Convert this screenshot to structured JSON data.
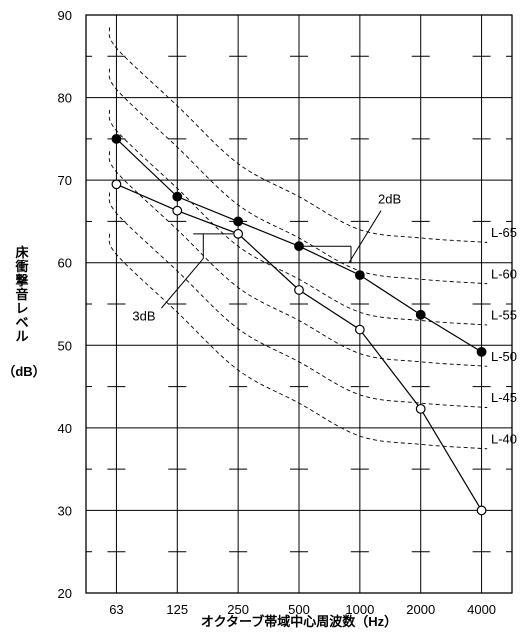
{
  "chart_data": {
    "type": "line",
    "xlabel": "オクターブ帯域中心周波数（Hz）",
    "ylabel_lines": [
      "床",
      "衝",
      "撃",
      "音",
      "レ",
      "ベ",
      "ル"
    ],
    "ylabel_unit": "（dB）",
    "categories": [
      "63",
      "125",
      "250",
      "500",
      "1000",
      "2000",
      "4000"
    ],
    "ylim": [
      20,
      90
    ],
    "yticks": [
      20,
      30,
      40,
      50,
      60,
      70,
      80,
      90
    ],
    "grid": true,
    "series": [
      {
        "marker": "filled",
        "values": [
          75,
          68,
          65,
          62,
          58.5,
          53.7,
          49.2
        ]
      },
      {
        "marker": "open",
        "values": [
          69.5,
          66.3,
          63.5,
          56.7,
          51.9,
          42.3,
          30
        ]
      }
    ],
    "reference_curves": [
      {
        "name": "L-65",
        "values": [
          86,
          79,
          72,
          68,
          64,
          63,
          62.5
        ]
      },
      {
        "name": "L-60",
        "values": [
          81,
          74,
          67,
          63,
          59,
          58,
          57.5
        ]
      },
      {
        "name": "L-55",
        "values": [
          76,
          69,
          62,
          58,
          54,
          53,
          52.5
        ]
      },
      {
        "name": "L-50",
        "values": [
          71,
          64,
          57,
          53,
          49,
          48,
          47.5
        ]
      },
      {
        "name": "L-45",
        "values": [
          66,
          59,
          52,
          48,
          44,
          43,
          42.5
        ]
      },
      {
        "name": "L-40",
        "values": [
          61,
          54,
          47,
          43,
          39,
          38,
          37.5
        ]
      }
    ],
    "annotations": [
      {
        "text": "2dB"
      },
      {
        "text": "3dB"
      }
    ]
  }
}
